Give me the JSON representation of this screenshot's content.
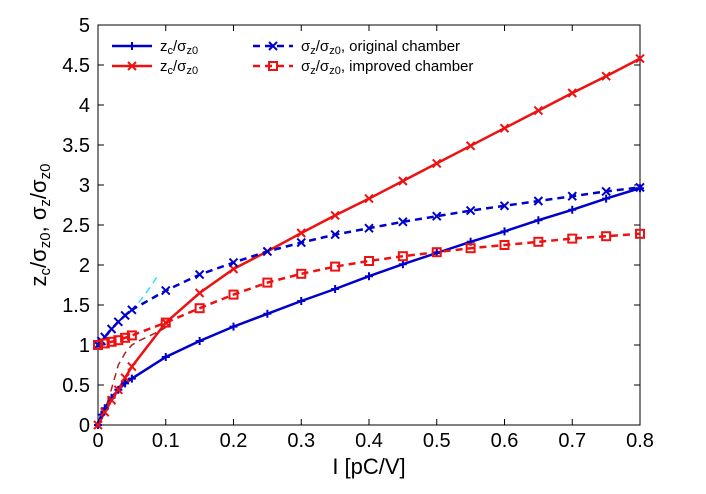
{
  "chart_data": {
    "type": "line",
    "xlabel": "I [pC/V]",
    "ylabel_parts": [
      "z",
      "c",
      "/σ",
      "z0",
      ", σ",
      "z",
      "/σ",
      "z0"
    ],
    "xlim": [
      0,
      0.8
    ],
    "ylim": [
      0,
      5
    ],
    "xticks": [
      "0",
      "0.1",
      "0.2",
      "0.3",
      "0.4",
      "0.5",
      "0.6",
      "0.7",
      "0.8"
    ],
    "yticks": [
      "0",
      "0.5",
      "1",
      "1.5",
      "2",
      "2.5",
      "3",
      "3.5",
      "4",
      "4.5",
      "5"
    ],
    "grid": false,
    "legend_position": "top-left",
    "series": [
      {
        "name": "z_c/σ_z0",
        "legend_parts": [
          "z",
          "c",
          "/σ",
          "z0"
        ],
        "color": "#0000cc",
        "dash": "solid",
        "marker": "plus",
        "x": [
          0,
          0.005,
          0.01,
          0.02,
          0.03,
          0.04,
          0.05,
          0.1,
          0.15,
          0.2,
          0.25,
          0.3,
          0.35,
          0.4,
          0.45,
          0.5,
          0.55,
          0.6,
          0.65,
          0.7,
          0.75,
          0.8
        ],
        "y": [
          0,
          0.13,
          0.21,
          0.34,
          0.44,
          0.52,
          0.58,
          0.85,
          1.05,
          1.23,
          1.39,
          1.55,
          1.7,
          1.86,
          2.01,
          2.15,
          2.29,
          2.42,
          2.56,
          2.69,
          2.83,
          2.96
        ]
      },
      {
        "name": "z_c/σ_z0",
        "legend_parts": [
          "z",
          "c",
          "/σ",
          "z0"
        ],
        "color": "#ee1111",
        "dash": "solid",
        "marker": "x",
        "x": [
          0,
          0.01,
          0.02,
          0.03,
          0.04,
          0.05,
          0.1,
          0.15,
          0.2,
          0.25,
          0.3,
          0.35,
          0.4,
          0.45,
          0.5,
          0.55,
          0.6,
          0.65,
          0.7,
          0.75,
          0.8
        ],
        "y": [
          0,
          0.16,
          0.31,
          0.44,
          0.59,
          0.73,
          1.28,
          1.65,
          1.95,
          2.17,
          2.4,
          2.62,
          2.83,
          3.05,
          3.27,
          3.49,
          3.71,
          3.93,
          4.15,
          4.36,
          4.58
        ]
      },
      {
        "name": "σ_z/σ_z0, original chamber",
        "legend_parts": [
          "σ",
          "z",
          "/σ",
          "z0",
          ", original chamber"
        ],
        "color": "#0000cc",
        "dash": "dashed",
        "marker": "x",
        "x": [
          0,
          0.005,
          0.01,
          0.02,
          0.03,
          0.04,
          0.05,
          0.1,
          0.15,
          0.2,
          0.25,
          0.3,
          0.35,
          0.4,
          0.45,
          0.5,
          0.55,
          0.6,
          0.65,
          0.7,
          0.75,
          0.8
        ],
        "y": [
          1.0,
          1.05,
          1.1,
          1.2,
          1.29,
          1.37,
          1.44,
          1.68,
          1.88,
          2.03,
          2.17,
          2.28,
          2.38,
          2.46,
          2.54,
          2.61,
          2.68,
          2.74,
          2.8,
          2.86,
          2.92,
          2.97
        ]
      },
      {
        "name": "σ_z/σ_z0, improved chamber",
        "legend_parts": [
          "σ",
          "z",
          "/σ",
          "z0",
          ", improved chamber"
        ],
        "color": "#ee1111",
        "dash": "dashed",
        "marker": "square",
        "x": [
          0,
          0.01,
          0.02,
          0.03,
          0.04,
          0.05,
          0.1,
          0.15,
          0.2,
          0.25,
          0.3,
          0.35,
          0.4,
          0.45,
          0.5,
          0.55,
          0.6,
          0.65,
          0.7,
          0.75,
          0.8
        ],
        "y": [
          1.0,
          1.02,
          1.04,
          1.06,
          1.09,
          1.12,
          1.28,
          1.46,
          1.63,
          1.78,
          1.89,
          1.98,
          2.05,
          2.11,
          2.16,
          2.21,
          2.25,
          2.29,
          2.33,
          2.36,
          2.39
        ]
      },
      {
        "color": "#33ddff",
        "dash": "dashed",
        "marker": "none",
        "x": [
          0.06,
          0.07,
          0.08,
          0.09
        ],
        "y": [
          1.53,
          1.64,
          1.76,
          1.89
        ]
      },
      {
        "color": "#aa2222",
        "dash": "dashed",
        "marker": "none",
        "x": [
          0.0,
          0.01,
          0.02,
          0.03,
          0.04,
          0.05,
          0.06,
          0.07,
          0.08,
          0.09,
          0.1
        ],
        "y": [
          0.0,
          0.18,
          0.45,
          0.75,
          0.9,
          1.0,
          1.05,
          1.09,
          1.13,
          1.17,
          1.22
        ]
      }
    ]
  }
}
